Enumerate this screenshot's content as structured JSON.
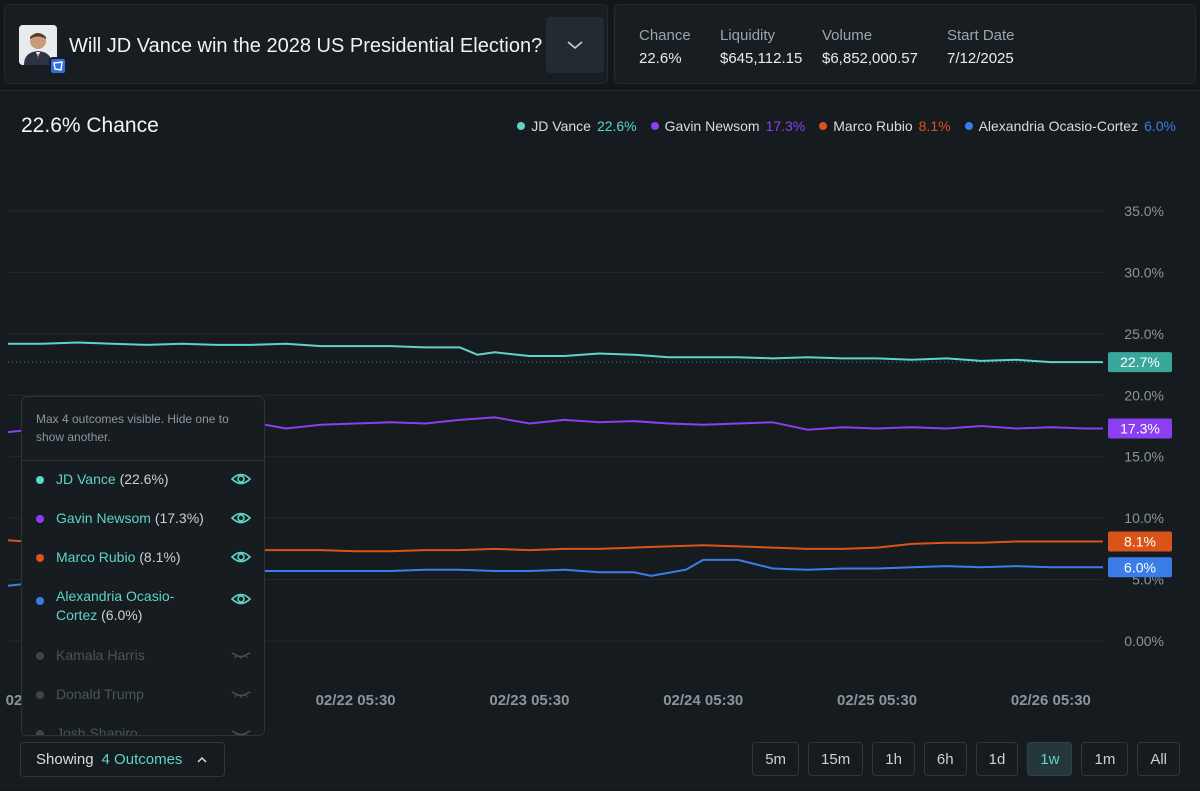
{
  "market": {
    "title": "Will JD Vance win the 2028 US Presidential Election?"
  },
  "stats": [
    {
      "label": "Chance",
      "value": "22.6%"
    },
    {
      "label": "Liquidity",
      "value": "$645,112.15"
    },
    {
      "label": "Volume",
      "value": "$6,852,000.57"
    },
    {
      "label": "Start Date",
      "value": "7/12/2025"
    }
  ],
  "chart_header": {
    "chance_text": "22.6% Chance"
  },
  "legend": [
    {
      "name": "JD Vance",
      "value": "22.6%",
      "color": "#5fd3c8"
    },
    {
      "name": "Gavin Newsom",
      "value": "17.3%",
      "color": "#8b3ff0"
    },
    {
      "name": "Marco Rubio",
      "value": "8.1%",
      "color": "#d9541a"
    },
    {
      "name": "Alexandria Ocasio-Cortez",
      "value": "6.0%",
      "color": "#3a7de6"
    }
  ],
  "chart_data": {
    "type": "line",
    "ylim": [
      0,
      35
    ],
    "y_ticks": [
      "0.00%",
      "5.0%",
      "10.0%",
      "15.0%",
      "20.0%",
      "25.0%",
      "30.0%",
      "35.0%"
    ],
    "y_tick_values": [
      0,
      5,
      10,
      15,
      20,
      25,
      30,
      35
    ],
    "x_tick_labels": [
      "02",
      "02/21 05:30",
      "02/22 05:30",
      "02/23 05:30",
      "02/24 05:30",
      "02/25 05:30",
      "02/26 05:30"
    ],
    "x_tick_values": [
      0,
      1,
      2,
      3,
      4,
      5,
      6
    ],
    "xlim": [
      0,
      6.3
    ],
    "series": [
      {
        "name": "JD Vance",
        "color": "#5fd3c8",
        "end_label": "22.7%",
        "x": [
          0,
          0.2,
          0.4,
          0.6,
          0.8,
          1.0,
          1.2,
          1.4,
          1.6,
          1.8,
          2.0,
          2.2,
          2.4,
          2.6,
          2.7,
          2.8,
          3.0,
          3.2,
          3.4,
          3.6,
          3.8,
          4.0,
          4.2,
          4.4,
          4.6,
          4.8,
          5.0,
          5.2,
          5.4,
          5.6,
          5.8,
          6.0,
          6.2,
          6.3
        ],
        "y": [
          24.2,
          24.2,
          24.3,
          24.2,
          24.1,
          24.2,
          24.1,
          24.1,
          24.2,
          24.0,
          24.0,
          24.0,
          23.9,
          23.9,
          23.3,
          23.5,
          23.2,
          23.2,
          23.4,
          23.3,
          23.1,
          23.1,
          23.1,
          23.0,
          23.1,
          23.0,
          23.0,
          22.9,
          23.0,
          22.8,
          22.9,
          22.7,
          22.7,
          22.7
        ]
      },
      {
        "name": "Gavin Newsom",
        "color": "#8b3ff0",
        "end_label": "17.3%",
        "x": [
          0,
          0.2,
          0.4,
          0.6,
          0.8,
          1.0,
          1.2,
          1.4,
          1.6,
          1.8,
          2.0,
          2.2,
          2.4,
          2.6,
          2.8,
          3.0,
          3.2,
          3.4,
          3.6,
          3.8,
          4.0,
          4.2,
          4.4,
          4.6,
          4.8,
          5.0,
          5.2,
          5.4,
          5.6,
          5.8,
          6.0,
          6.2,
          6.3
        ],
        "y": [
          17.0,
          17.3,
          17.4,
          17.5,
          17.4,
          17.3,
          17.5,
          17.8,
          17.3,
          17.6,
          17.7,
          17.8,
          17.7,
          18.0,
          18.2,
          17.7,
          18.0,
          17.8,
          17.9,
          17.7,
          17.6,
          17.7,
          17.8,
          17.2,
          17.4,
          17.3,
          17.4,
          17.3,
          17.5,
          17.3,
          17.4,
          17.3,
          17.3
        ]
      },
      {
        "name": "Marco Rubio",
        "color": "#d9541a",
        "end_label": "8.1%",
        "x": [
          0,
          0.2,
          0.4,
          0.6,
          0.8,
          1.0,
          1.2,
          1.4,
          1.6,
          1.8,
          2.0,
          2.2,
          2.4,
          2.6,
          2.8,
          3.0,
          3.2,
          3.4,
          3.6,
          3.8,
          4.0,
          4.2,
          4.4,
          4.6,
          4.8,
          5.0,
          5.2,
          5.4,
          5.6,
          5.8,
          6.0,
          6.2,
          6.3
        ],
        "y": [
          8.2,
          8.0,
          7.8,
          7.7,
          7.6,
          7.5,
          7.5,
          7.4,
          7.4,
          7.4,
          7.3,
          7.3,
          7.4,
          7.4,
          7.5,
          7.4,
          7.5,
          7.5,
          7.6,
          7.7,
          7.8,
          7.7,
          7.6,
          7.5,
          7.5,
          7.6,
          7.9,
          8.0,
          8.0,
          8.1,
          8.1,
          8.1,
          8.1
        ]
      },
      {
        "name": "Alexandria Ocasio-Cortez",
        "color": "#3a7de6",
        "end_label": "6.0%",
        "x": [
          0,
          0.2,
          0.4,
          0.6,
          0.8,
          1.0,
          1.2,
          1.4,
          1.6,
          1.8,
          2.0,
          2.2,
          2.4,
          2.6,
          2.8,
          3.0,
          3.2,
          3.4,
          3.6,
          3.7,
          3.9,
          4.0,
          4.2,
          4.4,
          4.6,
          4.8,
          5.0,
          5.2,
          5.4,
          5.6,
          5.8,
          6.0,
          6.2,
          6.3
        ],
        "y": [
          4.5,
          4.8,
          5.2,
          5.6,
          5.8,
          5.7,
          5.6,
          5.7,
          5.7,
          5.7,
          5.7,
          5.7,
          5.8,
          5.8,
          5.7,
          5.7,
          5.8,
          5.6,
          5.6,
          5.3,
          5.8,
          6.6,
          6.6,
          5.9,
          5.8,
          5.9,
          5.9,
          6.0,
          6.1,
          6.0,
          6.1,
          6.0,
          6.0,
          6.0
        ]
      }
    ]
  },
  "popover": {
    "note": "Max 4 outcomes visible. Hide one to show another.",
    "items": [
      {
        "name": "JD Vance",
        "pct": "(22.6%)",
        "color": "#5fd3c8",
        "visible": true
      },
      {
        "name": "Gavin Newsom",
        "pct": "(17.3%)",
        "color": "#8b3ff0",
        "visible": true
      },
      {
        "name": "Marco Rubio",
        "pct": "(8.1%)",
        "color": "#d9541a",
        "visible": true
      },
      {
        "name": "Alexandria Ocasio-Cortez",
        "pct": "(6.0%)",
        "color": "#3a7de6",
        "visible": true
      },
      {
        "name": "Kamala Harris",
        "pct": "",
        "color": "#3c4449",
        "visible": false
      },
      {
        "name": "Donald Trump",
        "pct": "",
        "color": "#3c4449",
        "visible": false
      },
      {
        "name": "Josh Shapiro",
        "pct": "",
        "color": "#3c4449",
        "visible": false
      }
    ]
  },
  "showing": {
    "prefix": "Showing",
    "value": "4 Outcomes"
  },
  "ranges": [
    "5m",
    "15m",
    "1h",
    "6h",
    "1d",
    "1w",
    "1m",
    "All"
  ],
  "active_range": "1w"
}
